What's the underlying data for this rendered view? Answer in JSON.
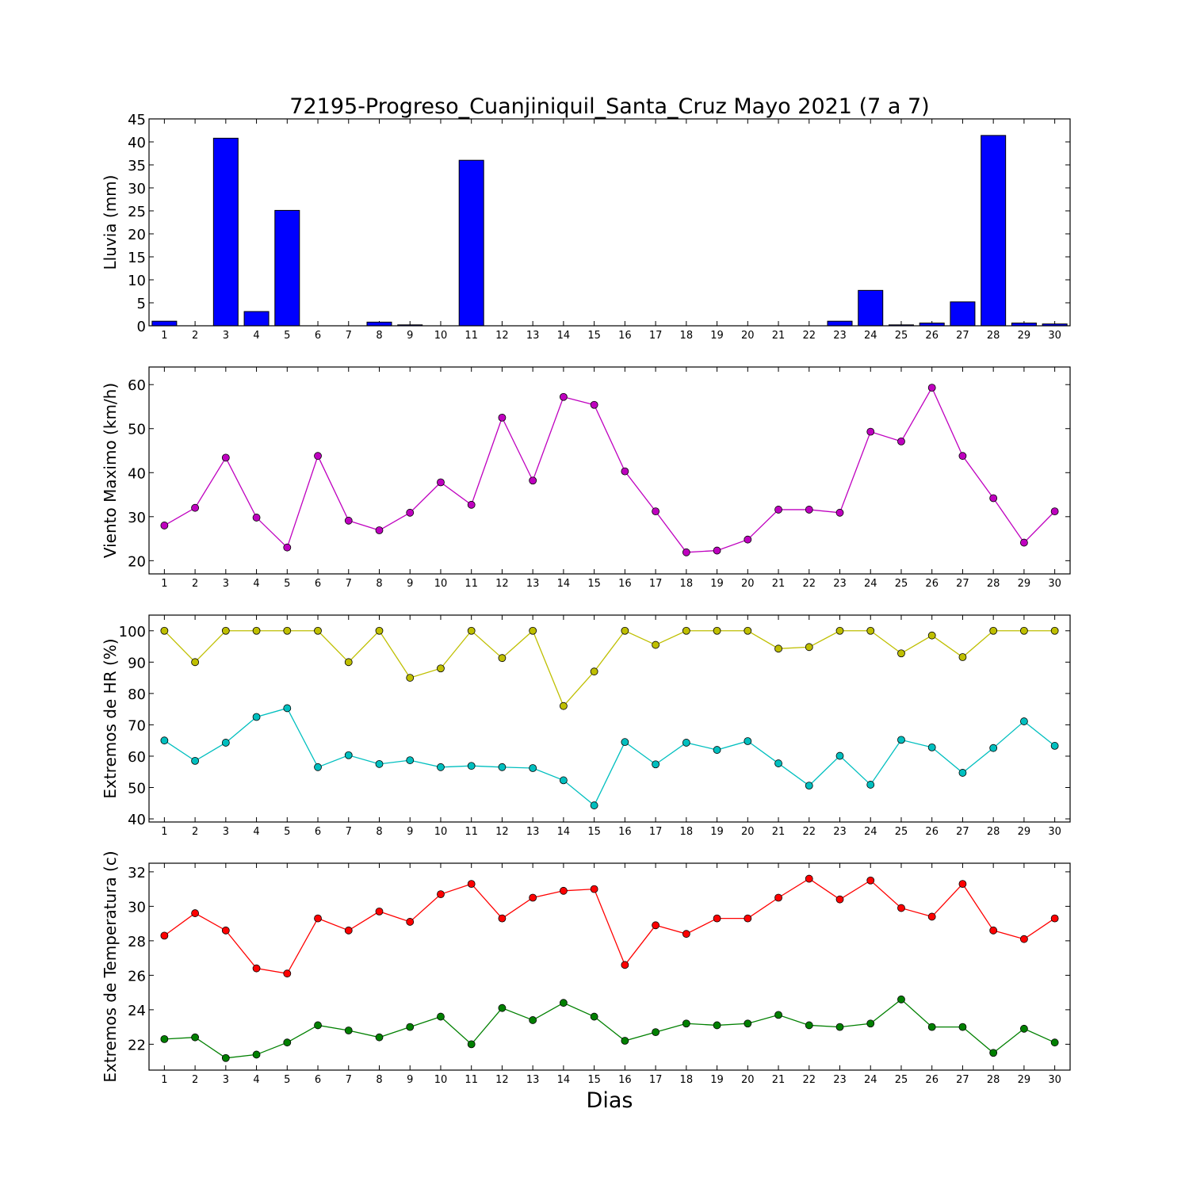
{
  "chart_data": [
    {
      "type": "bar",
      "title": "72195-Progreso_Cuanjiniquil_Santa_Cruz Mayo 2021  (7 a 7)",
      "ylabel": "Lluvia (mm)",
      "xlabel": "",
      "ylim": [
        0,
        45
      ],
      "yticks": [
        0,
        5,
        10,
        15,
        20,
        25,
        30,
        35,
        40,
        45
      ],
      "categories": [
        "1",
        "2",
        "3",
        "4",
        "5",
        "6",
        "7",
        "8",
        "9",
        "10",
        "11",
        "12",
        "13",
        "14",
        "15",
        "16",
        "17",
        "18",
        "19",
        "20",
        "21",
        "22",
        "23",
        "24",
        "25",
        "26",
        "27",
        "28",
        "29",
        "30"
      ],
      "series": [
        {
          "color": "#0000ff",
          "values": [
            1.0,
            0,
            40.8,
            3.1,
            25.1,
            0,
            0,
            0.8,
            0.2,
            0,
            36.0,
            0,
            0,
            0,
            0,
            0,
            0,
            0,
            0,
            0,
            0,
            0,
            1.0,
            7.7,
            0.2,
            0.6,
            5.2,
            41.4,
            0.6,
            0.4
          ]
        }
      ]
    },
    {
      "type": "line",
      "title": "",
      "ylabel": "Viento Maximo (km/h)",
      "xlabel": "",
      "ylim": [
        17,
        64
      ],
      "yticks": [
        20,
        30,
        40,
        50,
        60
      ],
      "categories": [
        "1",
        "2",
        "3",
        "4",
        "5",
        "6",
        "7",
        "8",
        "9",
        "10",
        "11",
        "12",
        "13",
        "14",
        "15",
        "16",
        "17",
        "18",
        "19",
        "20",
        "21",
        "22",
        "23",
        "24",
        "25",
        "26",
        "27",
        "28",
        "29",
        "30"
      ],
      "series": [
        {
          "color": "#bf00bf",
          "values": [
            28.0,
            32.0,
            43.4,
            29.8,
            23.0,
            43.8,
            29.1,
            26.9,
            30.9,
            37.8,
            32.7,
            52.5,
            38.2,
            57.2,
            55.4,
            40.3,
            31.2,
            21.9,
            22.3,
            24.8,
            31.6,
            31.6,
            30.9,
            49.3,
            47.1,
            59.3,
            43.8,
            34.2,
            24.1,
            31.2
          ]
        }
      ]
    },
    {
      "type": "line",
      "title": "",
      "ylabel": "Extremos de HR (%)",
      "xlabel": "",
      "ylim": [
        39,
        105
      ],
      "yticks": [
        40,
        50,
        60,
        70,
        80,
        90,
        100
      ],
      "categories": [
        "1",
        "2",
        "3",
        "4",
        "5",
        "6",
        "7",
        "8",
        "9",
        "10",
        "11",
        "12",
        "13",
        "14",
        "15",
        "16",
        "17",
        "18",
        "19",
        "20",
        "21",
        "22",
        "23",
        "24",
        "25",
        "26",
        "27",
        "28",
        "29",
        "30"
      ],
      "series": [
        {
          "color": "#bfbf00",
          "values": [
            100,
            90,
            100,
            100,
            100,
            100,
            90,
            100,
            85,
            88,
            100,
            91.3,
            100,
            76,
            87,
            100,
            95.5,
            100,
            100,
            100,
            94.3,
            94.8,
            100,
            100,
            92.8,
            98.5,
            91.6,
            100,
            100,
            100
          ]
        },
        {
          "color": "#00bfbf",
          "values": [
            65,
            58.5,
            64.3,
            72.5,
            75.3,
            56.5,
            60.3,
            57.5,
            58.7,
            56.5,
            56.9,
            56.5,
            56.2,
            52.3,
            44.3,
            64.5,
            57.4,
            64.3,
            62,
            64.8,
            57.7,
            50.6,
            60.1,
            50.9,
            65.2,
            62.8,
            54.7,
            62.6,
            71.1,
            63.3
          ]
        }
      ]
    },
    {
      "type": "line",
      "title": "",
      "ylabel": "Extremos de Temperatura (c)",
      "xlabel": "Dias",
      "ylim": [
        20.5,
        32.5
      ],
      "yticks": [
        22,
        24,
        26,
        28,
        30,
        32
      ],
      "categories": [
        "1",
        "2",
        "3",
        "4",
        "5",
        "6",
        "7",
        "8",
        "9",
        "10",
        "11",
        "12",
        "13",
        "14",
        "15",
        "16",
        "17",
        "18",
        "19",
        "20",
        "21",
        "22",
        "23",
        "24",
        "25",
        "26",
        "27",
        "28",
        "29",
        "30"
      ],
      "series": [
        {
          "color": "#ff0000",
          "values": [
            28.3,
            29.6,
            28.6,
            26.4,
            26.1,
            29.3,
            28.6,
            29.7,
            29.1,
            30.7,
            31.3,
            29.3,
            30.5,
            30.9,
            31.0,
            26.6,
            28.9,
            28.4,
            29.3,
            29.3,
            30.5,
            31.6,
            30.4,
            31.5,
            29.9,
            29.4,
            31.3,
            28.6,
            28.1,
            29.3
          ]
        },
        {
          "color": "#008000",
          "values": [
            22.3,
            22.4,
            21.2,
            21.4,
            22.1,
            23.1,
            22.8,
            22.4,
            23.0,
            23.6,
            22.0,
            24.1,
            23.4,
            24.4,
            23.6,
            22.2,
            22.7,
            23.2,
            23.1,
            23.2,
            23.7,
            23.1,
            23.0,
            23.2,
            24.6,
            23.0,
            23.0,
            21.5,
            22.9,
            22.1
          ]
        }
      ]
    }
  ]
}
